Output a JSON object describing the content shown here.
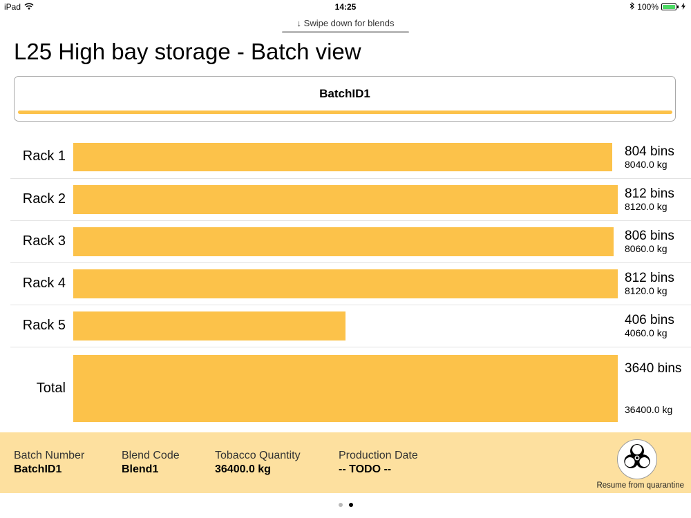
{
  "status_bar": {
    "device": "iPad",
    "time": "14:25",
    "battery": "100%",
    "wifi_icon": "wifi-icon",
    "bluetooth_icon": "bluetooth-icon",
    "battery_level": 1.0,
    "charging_icon": "bolt-icon"
  },
  "swipe_hint": {
    "arrow": "↓",
    "text": "Swipe down for blends"
  },
  "page": {
    "title": "L25 High bay storage - Batch view"
  },
  "batch_card": {
    "label": "BatchID1",
    "accent_color": "#fcc24a"
  },
  "racks": [
    {
      "label": "Rack 1",
      "bins": "804 bins",
      "kg": "8040.0 kg",
      "bin_count": 804
    },
    {
      "label": "Rack 2",
      "bins": "812 bins",
      "kg": "8120.0 kg",
      "bin_count": 812
    },
    {
      "label": "Rack 3",
      "bins": "806 bins",
      "kg": "8060.0 kg",
      "bin_count": 806
    },
    {
      "label": "Rack 4",
      "bins": "812 bins",
      "kg": "8120.0 kg",
      "bin_count": 812
    },
    {
      "label": "Rack 5",
      "bins": "406 bins",
      "kg": "4060.0 kg",
      "bin_count": 406
    }
  ],
  "total": {
    "label": "Total",
    "bins": "3640 bins",
    "kg": "36400.0 kg",
    "bin_count": 3640
  },
  "details": {
    "batch_number_label": "Batch Number",
    "batch_number": "BatchID1",
    "blend_code_label": "Blend Code",
    "blend_code": "Blend1",
    "quantity_label": "Tobacco Quantity",
    "quantity": "36400.0 kg",
    "production_date_label": "Production Date",
    "production_date": "-- TODO --",
    "panel_color": "#fde09f"
  },
  "quarantine": {
    "icon": "biohazard-icon",
    "label": "Resume from quarantine"
  },
  "pager": {
    "count": 2,
    "current": 2
  }
}
